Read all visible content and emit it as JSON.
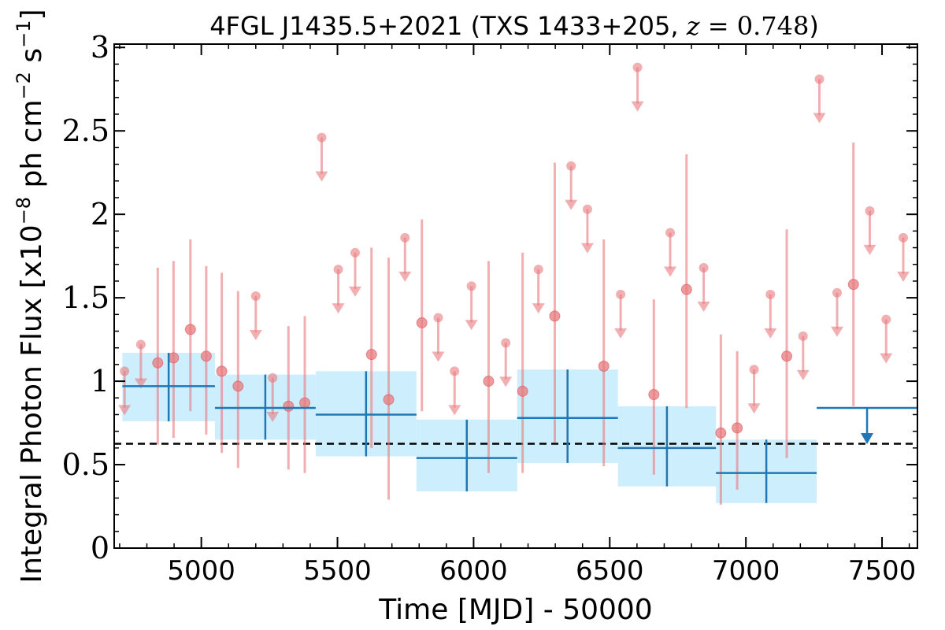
{
  "chart_data": {
    "type": "scatter",
    "title": {
      "prefix": "4FGL J1435.5+2021 (TXS 1433+205, ",
      "z_symbol": "z",
      "eq": " = ",
      "z_value": "0.748",
      "suffix": ")"
    },
    "xlabel": "Time [MJD] - 50000",
    "ylabel": "Integral Photon Flux [x10",
    "ylabel_exp": "−8",
    "ylabel_mid": " ph cm",
    "ylabel_exp2": "−2",
    "ylabel_end": " s",
    "ylabel_exp3": "−1",
    "ylabel_close": "]",
    "xlim": [
      4680,
      7630
    ],
    "ylim": [
      0,
      3.02
    ],
    "xticks": [
      5000,
      5500,
      6000,
      6500,
      7000,
      7500
    ],
    "xtick_labels": [
      "5000",
      "5500",
      "6000",
      "6500",
      "7000",
      "7500"
    ],
    "yticks": [
      0,
      0.5,
      1,
      1.5,
      2,
      2.5,
      3
    ],
    "ytick_labels": [
      "0",
      "0.5",
      "1",
      "1.5",
      "2",
      "2.5",
      "3"
    ],
    "reference_line": {
      "value": 0.625,
      "style": "dashed",
      "color": "#000000"
    },
    "short_bin_color": "#e8797e",
    "long_bin_color": "#1f77b4",
    "long_bin_band_color": "#cdeefc",
    "short_bins": {
      "detections": [
        {
          "x": 4840,
          "y": 1.11,
          "lo": 0.62,
          "hi": 1.68
        },
        {
          "x": 4898,
          "y": 1.14,
          "lo": 0.66,
          "hi": 1.72
        },
        {
          "x": 4960,
          "y": 1.31,
          "lo": 0.82,
          "hi": 1.85
        },
        {
          "x": 5018,
          "y": 1.15,
          "lo": 0.68,
          "hi": 1.69
        },
        {
          "x": 5075,
          "y": 1.06,
          "lo": 0.57,
          "hi": 1.65
        },
        {
          "x": 5135,
          "y": 0.97,
          "lo": 0.48,
          "hi": 1.54
        },
        {
          "x": 5320,
          "y": 0.85,
          "lo": 0.47,
          "hi": 1.33
        },
        {
          "x": 5380,
          "y": 0.87,
          "lo": 0.45,
          "hi": 1.39
        },
        {
          "x": 5625,
          "y": 1.16,
          "lo": 0.6,
          "hi": 1.8
        },
        {
          "x": 5688,
          "y": 0.89,
          "lo": 0.29,
          "hi": 1.74
        },
        {
          "x": 5810,
          "y": 1.35,
          "lo": 0.82,
          "hi": 1.97
        },
        {
          "x": 6055,
          "y": 1.0,
          "lo": 0.45,
          "hi": 1.72
        },
        {
          "x": 6180,
          "y": 0.94,
          "lo": 0.45,
          "hi": 1.77
        },
        {
          "x": 6298,
          "y": 1.39,
          "lo": 0.63,
          "hi": 2.31
        },
        {
          "x": 6478,
          "y": 1.09,
          "lo": 0.49,
          "hi": 1.85
        },
        {
          "x": 6662,
          "y": 0.92,
          "lo": 0.44,
          "hi": 1.49
        },
        {
          "x": 6782,
          "y": 1.55,
          "lo": 0.84,
          "hi": 2.36
        },
        {
          "x": 6908,
          "y": 0.69,
          "lo": 0.26,
          "hi": 1.28
        },
        {
          "x": 6968,
          "y": 0.72,
          "lo": 0.35,
          "hi": 1.18
        },
        {
          "x": 7150,
          "y": 1.15,
          "lo": 0.54,
          "hi": 1.91
        },
        {
          "x": 7395,
          "y": 1.58,
          "lo": 0.85,
          "hi": 2.43
        }
      ],
      "upper_limits": [
        {
          "x": 4718,
          "y": 1.06
        },
        {
          "x": 4778,
          "y": 1.22
        },
        {
          "x": 5200,
          "y": 1.51
        },
        {
          "x": 5262,
          "y": 1.02
        },
        {
          "x": 5442,
          "y": 2.46
        },
        {
          "x": 5503,
          "y": 1.67
        },
        {
          "x": 5565,
          "y": 1.77
        },
        {
          "x": 5748,
          "y": 1.86
        },
        {
          "x": 5870,
          "y": 1.38
        },
        {
          "x": 5930,
          "y": 1.06
        },
        {
          "x": 5992,
          "y": 1.57
        },
        {
          "x": 6118,
          "y": 1.23
        },
        {
          "x": 6238,
          "y": 1.67
        },
        {
          "x": 6358,
          "y": 2.29
        },
        {
          "x": 6418,
          "y": 2.03
        },
        {
          "x": 6540,
          "y": 1.52
        },
        {
          "x": 6602,
          "y": 2.88
        },
        {
          "x": 6722,
          "y": 1.89
        },
        {
          "x": 6845,
          "y": 1.68
        },
        {
          "x": 7030,
          "y": 1.07
        },
        {
          "x": 7090,
          "y": 1.52
        },
        {
          "x": 7210,
          "y": 1.27
        },
        {
          "x": 7270,
          "y": 2.81
        },
        {
          "x": 7335,
          "y": 1.53
        },
        {
          "x": 7455,
          "y": 2.02
        },
        {
          "x": 7515,
          "y": 1.37
        },
        {
          "x": 7578,
          "y": 1.86
        }
      ]
    },
    "long_bins": {
      "detections": [
        {
          "x0": 4710,
          "x1": 5050,
          "y": 0.97,
          "lo": 0.76,
          "hi": 1.17
        },
        {
          "x0": 5050,
          "x1": 5420,
          "y": 0.84,
          "lo": 0.65,
          "hi": 1.04
        },
        {
          "x0": 5420,
          "x1": 5790,
          "y": 0.8,
          "lo": 0.55,
          "hi": 1.06
        },
        {
          "x0": 5790,
          "x1": 6160,
          "y": 0.54,
          "lo": 0.34,
          "hi": 0.77
        },
        {
          "x0": 6160,
          "x1": 6530,
          "y": 0.78,
          "lo": 0.51,
          "hi": 1.07
        },
        {
          "x0": 6530,
          "x1": 6890,
          "y": 0.6,
          "lo": 0.37,
          "hi": 0.85
        },
        {
          "x0": 6890,
          "x1": 7260,
          "y": 0.45,
          "lo": 0.27,
          "hi": 0.65
        }
      ],
      "upper_limits": [
        {
          "x0": 7260,
          "x1": 7630,
          "y": 0.84
        }
      ]
    }
  }
}
